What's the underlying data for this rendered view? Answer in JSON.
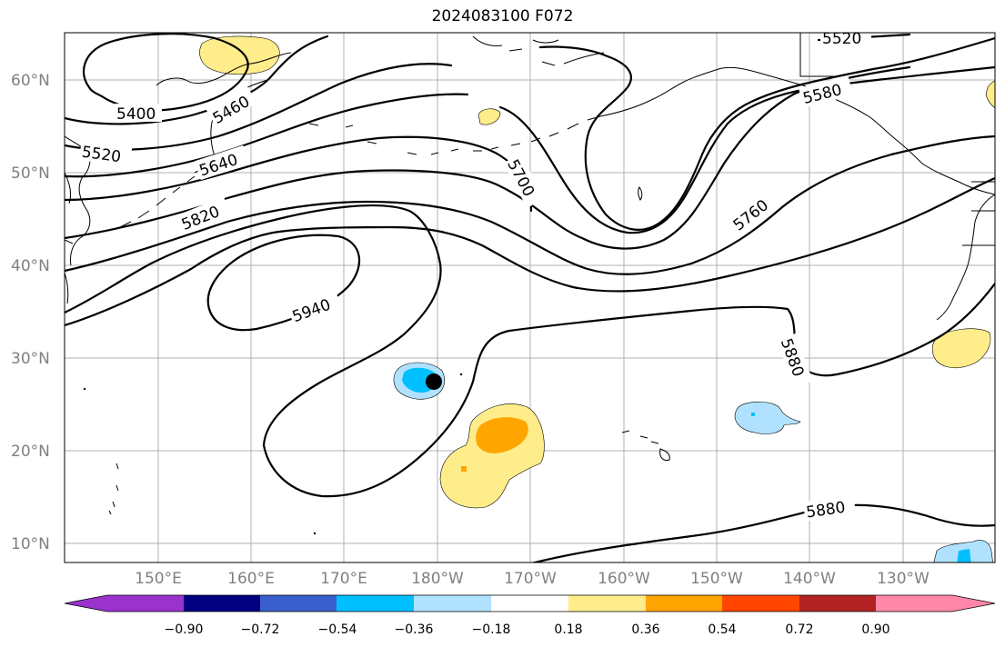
{
  "title": "2024083100 F072",
  "lat_labels": [
    "60°N",
    "50°N",
    "40°N",
    "30°N",
    "20°N",
    "10°N"
  ],
  "lon_labels": [
    "150°E",
    "160°E",
    "170°E",
    "180°W",
    "170°W",
    "160°W",
    "150°W",
    "140°W",
    "130°W"
  ],
  "contour_labels": [
    "5400",
    "5460",
    "5520",
    "5640",
    "5820",
    "5940",
    "5700",
    "5580",
    "5520",
    "5760",
    "5880",
    "5880"
  ],
  "colorbar": {
    "ticks": [
      "−0.90",
      "−0.72",
      "−0.54",
      "−0.36",
      "−0.18",
      "0.18",
      "0.36",
      "0.54",
      "0.72",
      "0.90"
    ],
    "colors": [
      "#9933cc",
      "#000080",
      "#3a5fcd",
      "#00bfff",
      "#b0e2ff",
      "#ffffff",
      "#ffec8b",
      "#ffa500",
      "#ff4500",
      "#b22222",
      "#ff88aa"
    ]
  }
}
